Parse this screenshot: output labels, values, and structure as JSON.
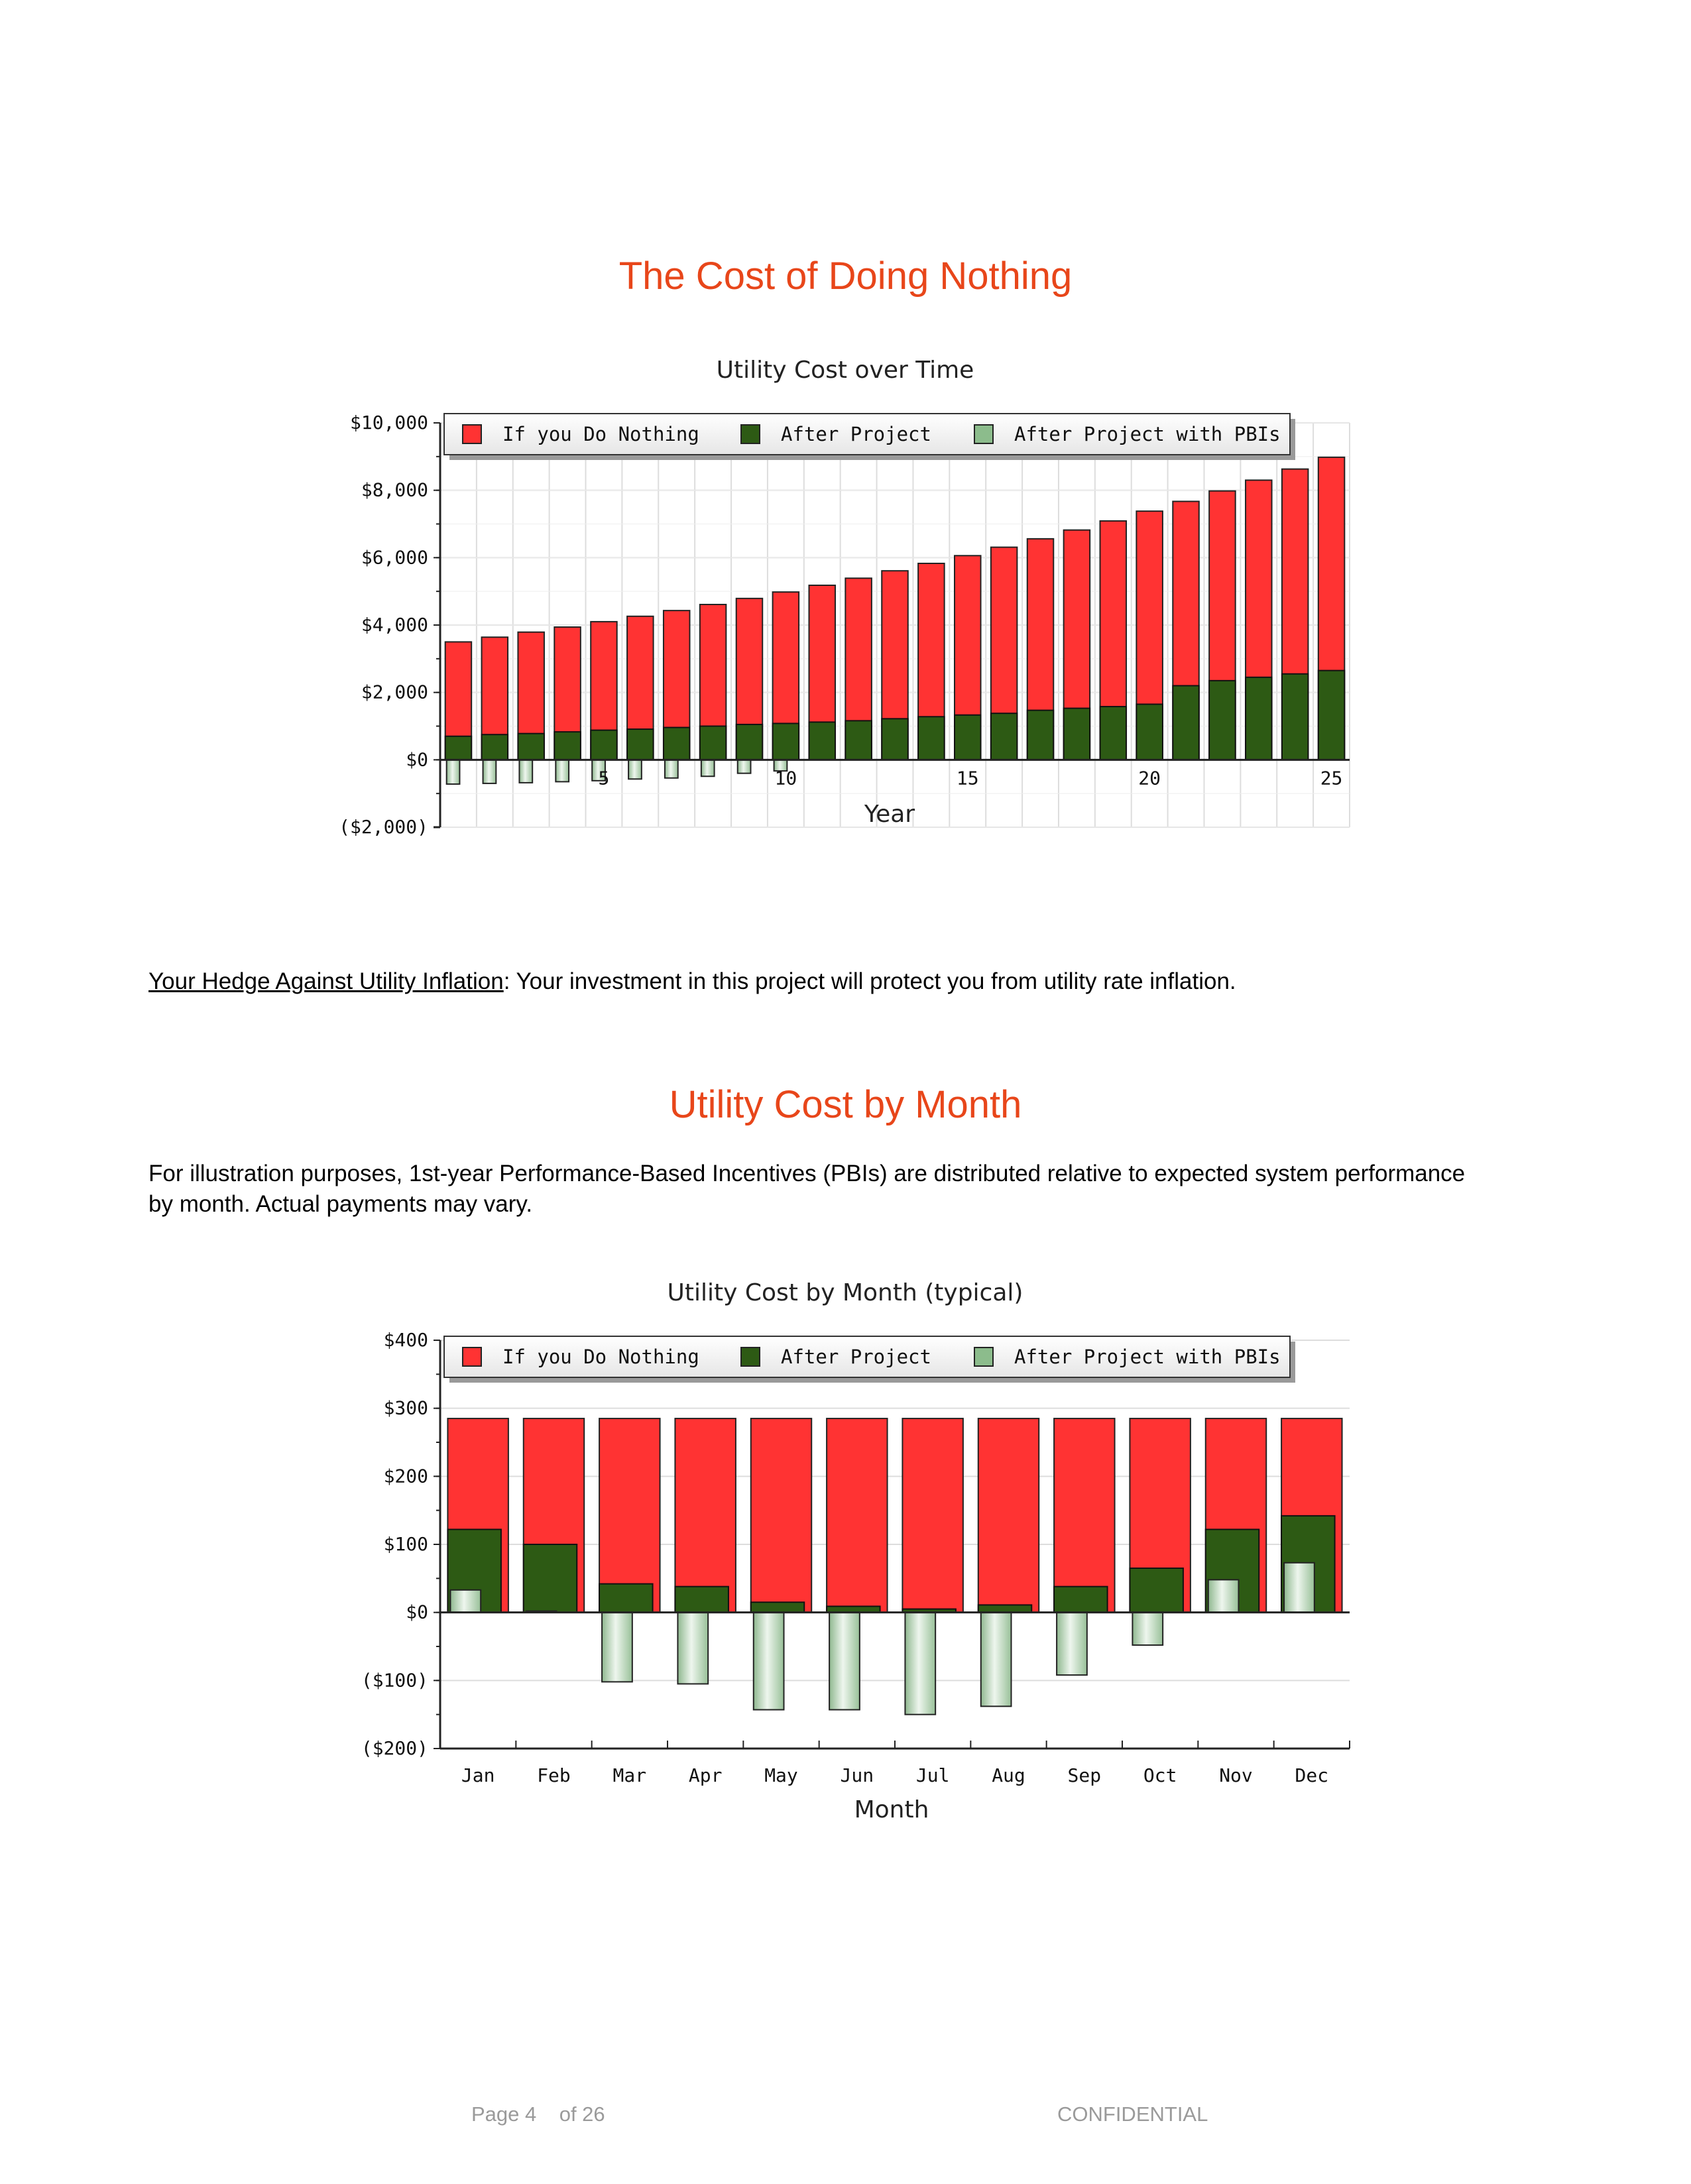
{
  "section1": {
    "title": "The Cost of Doing Nothing"
  },
  "hedge": {
    "label": "Your Hedge Against Utility Inflation",
    "text": ": Your investment in this project will protect you from utility rate inflation."
  },
  "section2": {
    "title": "Utility Cost by Month",
    "paragraph": "For illustration purposes, 1st-year Performance-Based Incentives (PBIs) are distributed relative to expected system performance by month. Actual payments may vary."
  },
  "footer": {
    "page": "Page 4",
    "of": "of 26",
    "confidential": "CONFIDENTIAL"
  },
  "colors": {
    "nothing": "#ff3333",
    "after": "#2d5a14",
    "pbi": "#b8d6b8",
    "title": "#e8461a"
  },
  "chart_data": [
    {
      "type": "bar",
      "title": "Utility Cost over Time",
      "xlabel": "Year",
      "ylabel": "",
      "ylim": [
        -2000,
        10000
      ],
      "yticks": [
        10000,
        8000,
        6000,
        4000,
        2000,
        0,
        -2000
      ],
      "ytick_labels": [
        "$10,000",
        "$8,000",
        "$6,000",
        "$4,000",
        "$2,000",
        "$0",
        "($2,000)"
      ],
      "x": [
        1,
        2,
        3,
        4,
        5,
        6,
        7,
        8,
        9,
        10,
        11,
        12,
        13,
        14,
        15,
        16,
        17,
        18,
        19,
        20,
        21,
        22,
        23,
        24,
        25
      ],
      "xtick_labels": [
        "5",
        "10",
        "15",
        "20",
        "25"
      ],
      "xtick_values": [
        5,
        10,
        15,
        20,
        25
      ],
      "legend_position": "top",
      "grid": true,
      "series": [
        {
          "name": "If you Do Nothing",
          "values": [
            3500,
            3640,
            3790,
            3940,
            4100,
            4260,
            4430,
            4610,
            4790,
            4980,
            5180,
            5390,
            5610,
            5830,
            6060,
            6310,
            6560,
            6820,
            7090,
            7380,
            7670,
            7980,
            8300,
            8630,
            8980
          ]
        },
        {
          "name": "After Project",
          "values": [
            700,
            750,
            780,
            830,
            880,
            910,
            960,
            1000,
            1050,
            1080,
            1120,
            1160,
            1220,
            1280,
            1330,
            1380,
            1470,
            1530,
            1580,
            1650,
            2200,
            2350,
            2450,
            2550,
            2650
          ]
        },
        {
          "name": "After Project with PBIs",
          "values": [
            -720,
            -700,
            -680,
            -650,
            -620,
            -570,
            -540,
            -490,
            -400,
            -330,
            0,
            0,
            0,
            0,
            0,
            0,
            0,
            0,
            0,
            0,
            0,
            0,
            0,
            0,
            0
          ]
        }
      ]
    },
    {
      "type": "bar",
      "title": "Utility Cost by Month (typical)",
      "xlabel": "Month",
      "ylabel": "",
      "ylim": [
        -200,
        400
      ],
      "yticks": [
        400,
        300,
        200,
        100,
        0,
        -100,
        -200
      ],
      "ytick_labels": [
        "$400",
        "$300",
        "$200",
        "$100",
        "$0",
        "($100)",
        "($200)"
      ],
      "categories": [
        "Jan",
        "Feb",
        "Mar",
        "Apr",
        "May",
        "Jun",
        "Jul",
        "Aug",
        "Sep",
        "Oct",
        "Nov",
        "Dec"
      ],
      "legend_position": "top",
      "grid": true,
      "series": [
        {
          "name": "If you Do Nothing",
          "values": [
            285,
            285,
            285,
            285,
            285,
            285,
            285,
            285,
            285,
            285,
            285,
            285
          ]
        },
        {
          "name": "After Project",
          "values": [
            122,
            100,
            42,
            38,
            15,
            9,
            5,
            11,
            38,
            65,
            122,
            142
          ]
        },
        {
          "name": "After Project with PBIs",
          "values": [
            33,
            2,
            -102,
            -105,
            -143,
            -143,
            -150,
            -138,
            -92,
            -48,
            48,
            73
          ]
        }
      ]
    }
  ]
}
